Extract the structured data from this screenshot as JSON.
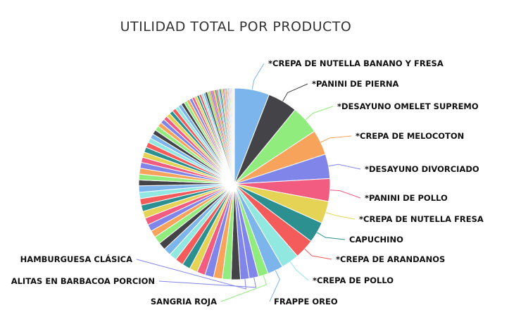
{
  "chart_data": {
    "type": "pie",
    "title": "UTILIDAD TOTAL POR PRODUCTO",
    "labeled_slices": [
      {
        "label": "*CREPA DE NUTELLA BANANO Y FRESA",
        "value": 6.0,
        "color": "#7cb5ec"
      },
      {
        "label": "*PANINI DE PIERNA",
        "value": 5.1,
        "color": "#434348"
      },
      {
        "label": "*DESAYUNO OMELET SUPREMO",
        "value": 4.9,
        "color": "#90ed7d"
      },
      {
        "label": "*CREPA DE MELOCOTON",
        "value": 4.3,
        "color": "#f7a35c"
      },
      {
        "label": "*DESAYUNO DIVORCIADO",
        "value": 4.2,
        "color": "#8085e9"
      },
      {
        "label": "*PANINI DE POLLO",
        "value": 3.9,
        "color": "#f15c80"
      },
      {
        "label": "*CREPA DE NUTELLA FRESA",
        "value": 3.8,
        "color": "#e4d354"
      },
      {
        "label": "CAPUCHINO",
        "value": 3.6,
        "color": "#2b908f"
      },
      {
        "label": "*CREPA DE ARANDANOS",
        "value": 3.4,
        "color": "#f45b5b"
      },
      {
        "label": "*CREPA DE POLLO",
        "value": 3.1,
        "color": "#91e8e1"
      },
      {
        "label": "FRAPPE OREO",
        "value": 2.7,
        "color": "#7cb5ec"
      },
      {
        "label": "SANGRIA ROJA",
        "value": 1.7,
        "color": "#90ed7d"
      },
      {
        "label": "ALITAS EN BARBACOA PORCION",
        "value": 1.6,
        "color": "#8085e9"
      },
      {
        "label": "HAMBURGUESA CLÁSICA",
        "value": 1.5,
        "color": "#8085e9"
      }
    ],
    "palette": [
      "#7cb5ec",
      "#434348",
      "#90ed7d",
      "#f7a35c",
      "#8085e9",
      "#f15c80",
      "#e4d354",
      "#2b908f",
      "#f45b5b",
      "#91e8e1"
    ],
    "other_slices": [
      1.6,
      1.5,
      1.5,
      1.5,
      1.4,
      1.4,
      1.4,
      1.4,
      1.3,
      1.3,
      1.3,
      1.3,
      1.2,
      1.2,
      1.2,
      1.2,
      1.1,
      1.1,
      1.1,
      1.1,
      1.0,
      1.0,
      1.0,
      1.0,
      0.9,
      0.9,
      0.9,
      0.9,
      0.8,
      0.8,
      0.8,
      0.8,
      0.75,
      0.75,
      0.7,
      0.7,
      0.65,
      0.65,
      0.6,
      0.6,
      0.55,
      0.55,
      0.5,
      0.5,
      0.45,
      0.45,
      0.4,
      0.4,
      0.36,
      0.36,
      0.32,
      0.32,
      0.28,
      0.28,
      0.25,
      0.25,
      0.22,
      0.22,
      0.2,
      0.2,
      0.18,
      0.18,
      0.16,
      0.16,
      0.14,
      0.14,
      0.12,
      0.12,
      0.1,
      0.1,
      0.09,
      0.09,
      0.08,
      0.08,
      0.07,
      0.07,
      0.06,
      0.06,
      0.05,
      0.05,
      0.05,
      0.05,
      0.04,
      0.04,
      0.04,
      0.04,
      0.03,
      0.03,
      0.03,
      0.03
    ]
  }
}
